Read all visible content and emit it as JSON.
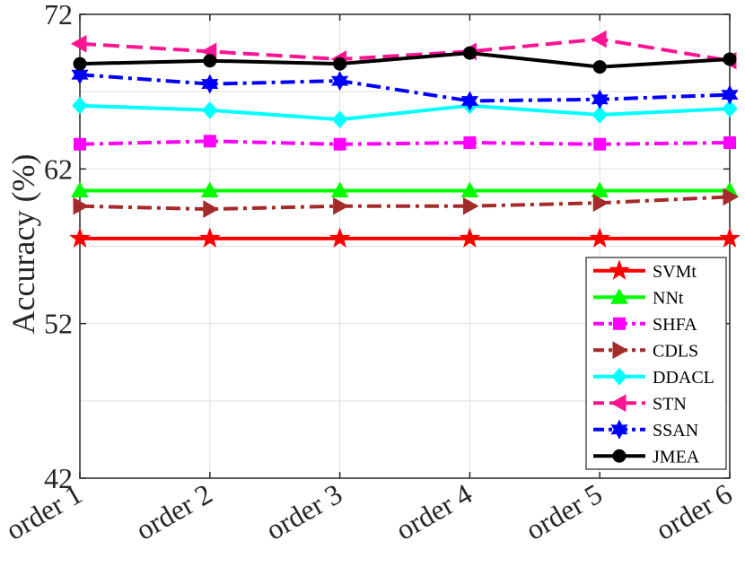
{
  "chart_data": {
    "type": "line",
    "title": "",
    "xlabel": "",
    "ylabel": "Accuracy (%)",
    "categories": [
      "order 1",
      "order 2",
      "order 3",
      "order 4",
      "order 5",
      "order 6"
    ],
    "ylim": [
      42,
      72
    ],
    "yticks": [
      42,
      52,
      62,
      72
    ],
    "grid": true,
    "legend_position": "bottom-right",
    "series": [
      {
        "name": "SVMt",
        "color": "#ff0000",
        "dash": "solid",
        "marker": "star",
        "values": [
          57.5,
          57.5,
          57.5,
          57.5,
          57.5,
          57.5
        ]
      },
      {
        "name": "NNt",
        "color": "#00ff00",
        "dash": "solid",
        "marker": "triangle-up",
        "values": [
          60.6,
          60.6,
          60.6,
          60.6,
          60.6,
          60.6
        ]
      },
      {
        "name": "SHFA",
        "color": "#ff00ff",
        "dash": "dashdot",
        "marker": "square",
        "values": [
          63.6,
          63.8,
          63.6,
          63.7,
          63.6,
          63.7
        ]
      },
      {
        "name": "CDLS",
        "color": "#a52a2a",
        "dash": "dashdot",
        "marker": "triangle-right",
        "values": [
          59.6,
          59.4,
          59.6,
          59.6,
          59.8,
          60.2
        ]
      },
      {
        "name": "DDACL",
        "color": "#00ffff",
        "dash": "solid",
        "marker": "diamond",
        "values": [
          66.1,
          65.8,
          65.2,
          66.1,
          65.5,
          65.9
        ]
      },
      {
        "name": "STN",
        "color": "#ff1493",
        "dash": "dashed",
        "marker": "triangle-left",
        "values": [
          70.1,
          69.6,
          69.1,
          69.6,
          70.4,
          69.0
        ]
      },
      {
        "name": "SSAN",
        "color": "#0000ff",
        "dash": "dashdot",
        "marker": "hexagram",
        "values": [
          68.1,
          67.5,
          67.7,
          66.4,
          66.5,
          66.8
        ]
      },
      {
        "name": "JMEA",
        "color": "#000000",
        "dash": "solid",
        "marker": "circle",
        "values": [
          68.8,
          69.0,
          68.8,
          69.5,
          68.6,
          69.1
        ]
      }
    ]
  }
}
